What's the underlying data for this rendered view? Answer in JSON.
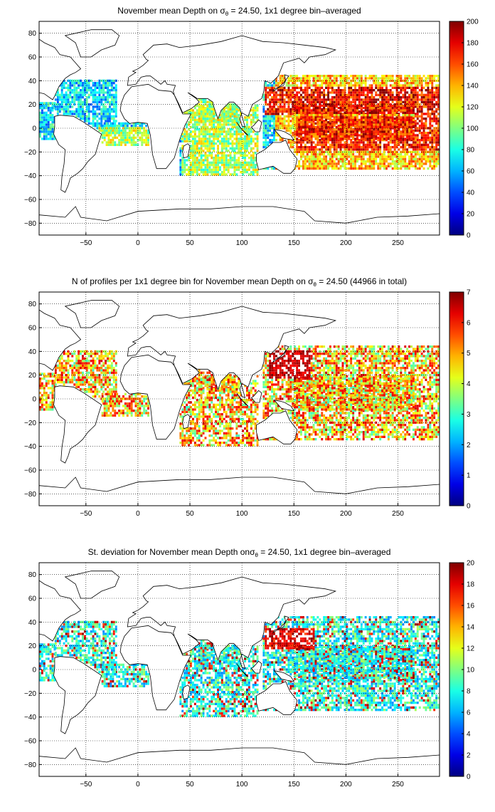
{
  "panels": [
    {
      "id": "mean_depth",
      "title_parts": [
        "November mean Depth on ",
        "σ",
        "θ",
        " = 24.50, 1x1 degree bin–averaged"
      ],
      "x_ticks": [
        -50,
        0,
        50,
        100,
        150,
        200,
        250
      ],
      "y_ticks": [
        80,
        60,
        40,
        20,
        0,
        -20,
        -40,
        -60,
        -80
      ],
      "colorbar": {
        "min": 0,
        "max": 200,
        "ticks": [
          0,
          20,
          40,
          60,
          80,
          100,
          120,
          140,
          160,
          180,
          200
        ]
      }
    },
    {
      "id": "n_profiles",
      "title_parts": [
        "N of profiles per 1x1 degree bin for November mean Depth on ",
        "σ",
        "θ",
        " = 24.50 (44966 in total)"
      ],
      "x_ticks": [
        -50,
        0,
        50,
        100,
        150,
        200,
        250
      ],
      "y_ticks": [
        80,
        60,
        40,
        20,
        0,
        -20,
        -40,
        -60,
        -80
      ],
      "colorbar": {
        "min": 0,
        "max": 7,
        "ticks": [
          0,
          1,
          2,
          3,
          4,
          5,
          6,
          7
        ]
      }
    },
    {
      "id": "std_dev",
      "title_parts": [
        "St. deviation for November mean Depth on",
        "σ",
        "θ",
        " = 24.50, 1x1 degree bin–averaged"
      ],
      "x_ticks": [
        -50,
        0,
        50,
        100,
        150,
        200,
        250
      ],
      "y_ticks": [
        80,
        60,
        40,
        20,
        0,
        -20,
        -40,
        -60,
        -80
      ],
      "colorbar": {
        "min": 0,
        "max": 20,
        "ticks": [
          0,
          2,
          4,
          6,
          8,
          10,
          12,
          14,
          16,
          18,
          20
        ]
      }
    }
  ],
  "map_extent": {
    "lon": [
      -95,
      290
    ],
    "lat": [
      -90,
      90
    ]
  },
  "colormap": "jet",
  "grid": "dotted"
}
